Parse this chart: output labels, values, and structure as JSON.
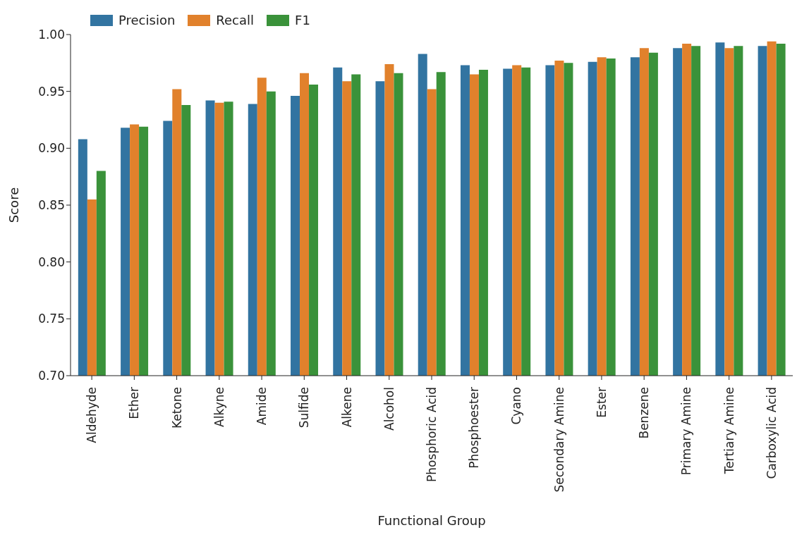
{
  "chart_data": {
    "type": "bar",
    "xlabel": "Functional Group",
    "ylabel": "Score",
    "categories": [
      "Aldehyde",
      "Ether",
      "Ketone",
      "Alkyne",
      "Amide",
      "Sulfide",
      "Alkene",
      "Alcohol",
      "Phosphoric Acid",
      "Phosphoester",
      "Cyano",
      "Secondary Amine",
      "Ester",
      "Benzene",
      "Primary Amine",
      "Tertiary Amine",
      "Carboxylic Acid"
    ],
    "series": [
      {
        "name": "Precision",
        "color": "#3274a1",
        "values": [
          0.908,
          0.918,
          0.924,
          0.942,
          0.939,
          0.946,
          0.971,
          0.959,
          0.983,
          0.973,
          0.97,
          0.973,
          0.976,
          0.98,
          0.988,
          0.993,
          0.99
        ]
      },
      {
        "name": "Recall",
        "color": "#e1812c",
        "values": [
          0.855,
          0.921,
          0.952,
          0.94,
          0.962,
          0.966,
          0.959,
          0.974,
          0.952,
          0.965,
          0.973,
          0.977,
          0.98,
          0.988,
          0.992,
          0.988,
          0.994
        ]
      },
      {
        "name": "F1",
        "color": "#3a923a",
        "values": [
          0.88,
          0.919,
          0.938,
          0.941,
          0.95,
          0.956,
          0.965,
          0.966,
          0.967,
          0.969,
          0.971,
          0.975,
          0.979,
          0.984,
          0.99,
          0.99,
          0.992
        ]
      }
    ],
    "ylim": [
      0.7,
      1.0
    ],
    "yticks": [
      {
        "value": 0.7,
        "label": "0.70"
      },
      0.75,
      {
        "value": 0.8,
        "label": "0.80"
      },
      0.85,
      {
        "value": 0.9,
        "label": "0.90"
      },
      0.95,
      {
        "value": 1,
        "label": "1.00"
      }
    ],
    "legend": "top left"
  }
}
